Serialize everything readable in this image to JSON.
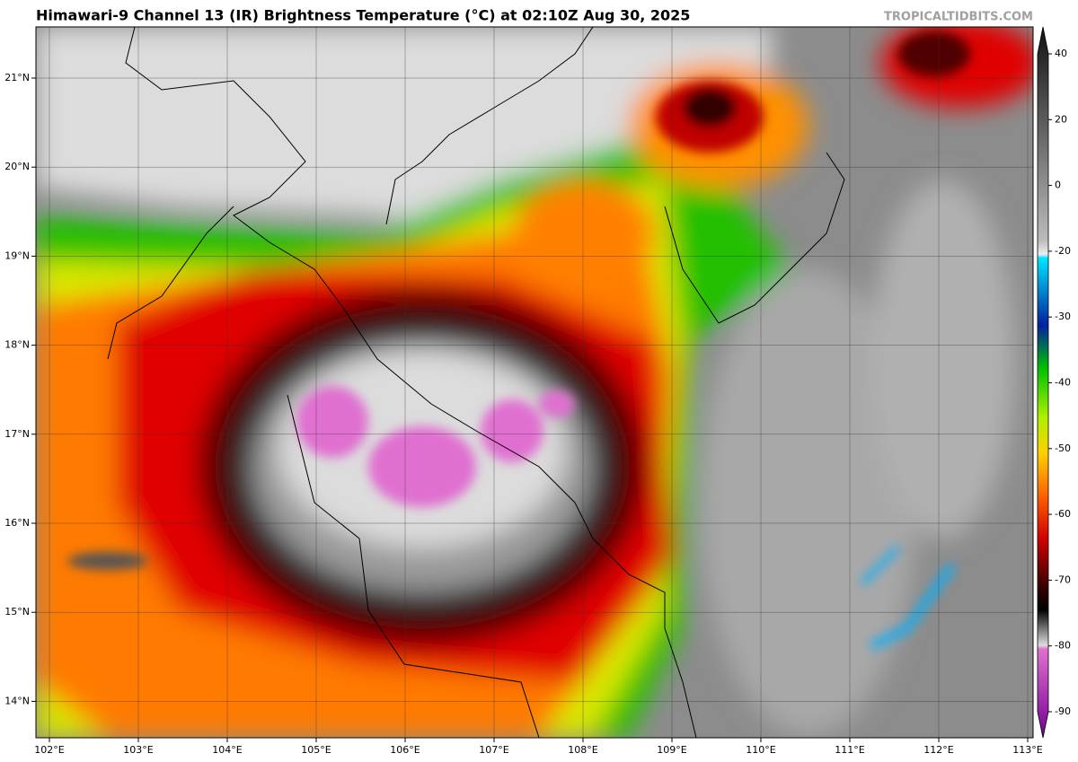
{
  "header": {
    "title": "Himawari-9 Channel 13 (IR) Brightness Temperature (°C) at 02:10Z Aug 30, 2025",
    "watermark": "TROPICALTIDBITS.COM"
  },
  "map": {
    "lat_labels": [
      "21°N",
      "20°N",
      "19°N",
      "18°N",
      "17°N",
      "16°N",
      "15°N",
      "14°N"
    ],
    "lon_labels": [
      "102°E",
      "103°E",
      "104°E",
      "105°E",
      "106°E",
      "107°E",
      "108°E",
      "109°E",
      "110°E",
      "111°E",
      "112°E",
      "113°E"
    ]
  },
  "colorbar": {
    "ticks": [
      40,
      20,
      0,
      -20,
      -30,
      -40,
      -50,
      -60,
      -70,
      -80,
      -90
    ]
  }
}
